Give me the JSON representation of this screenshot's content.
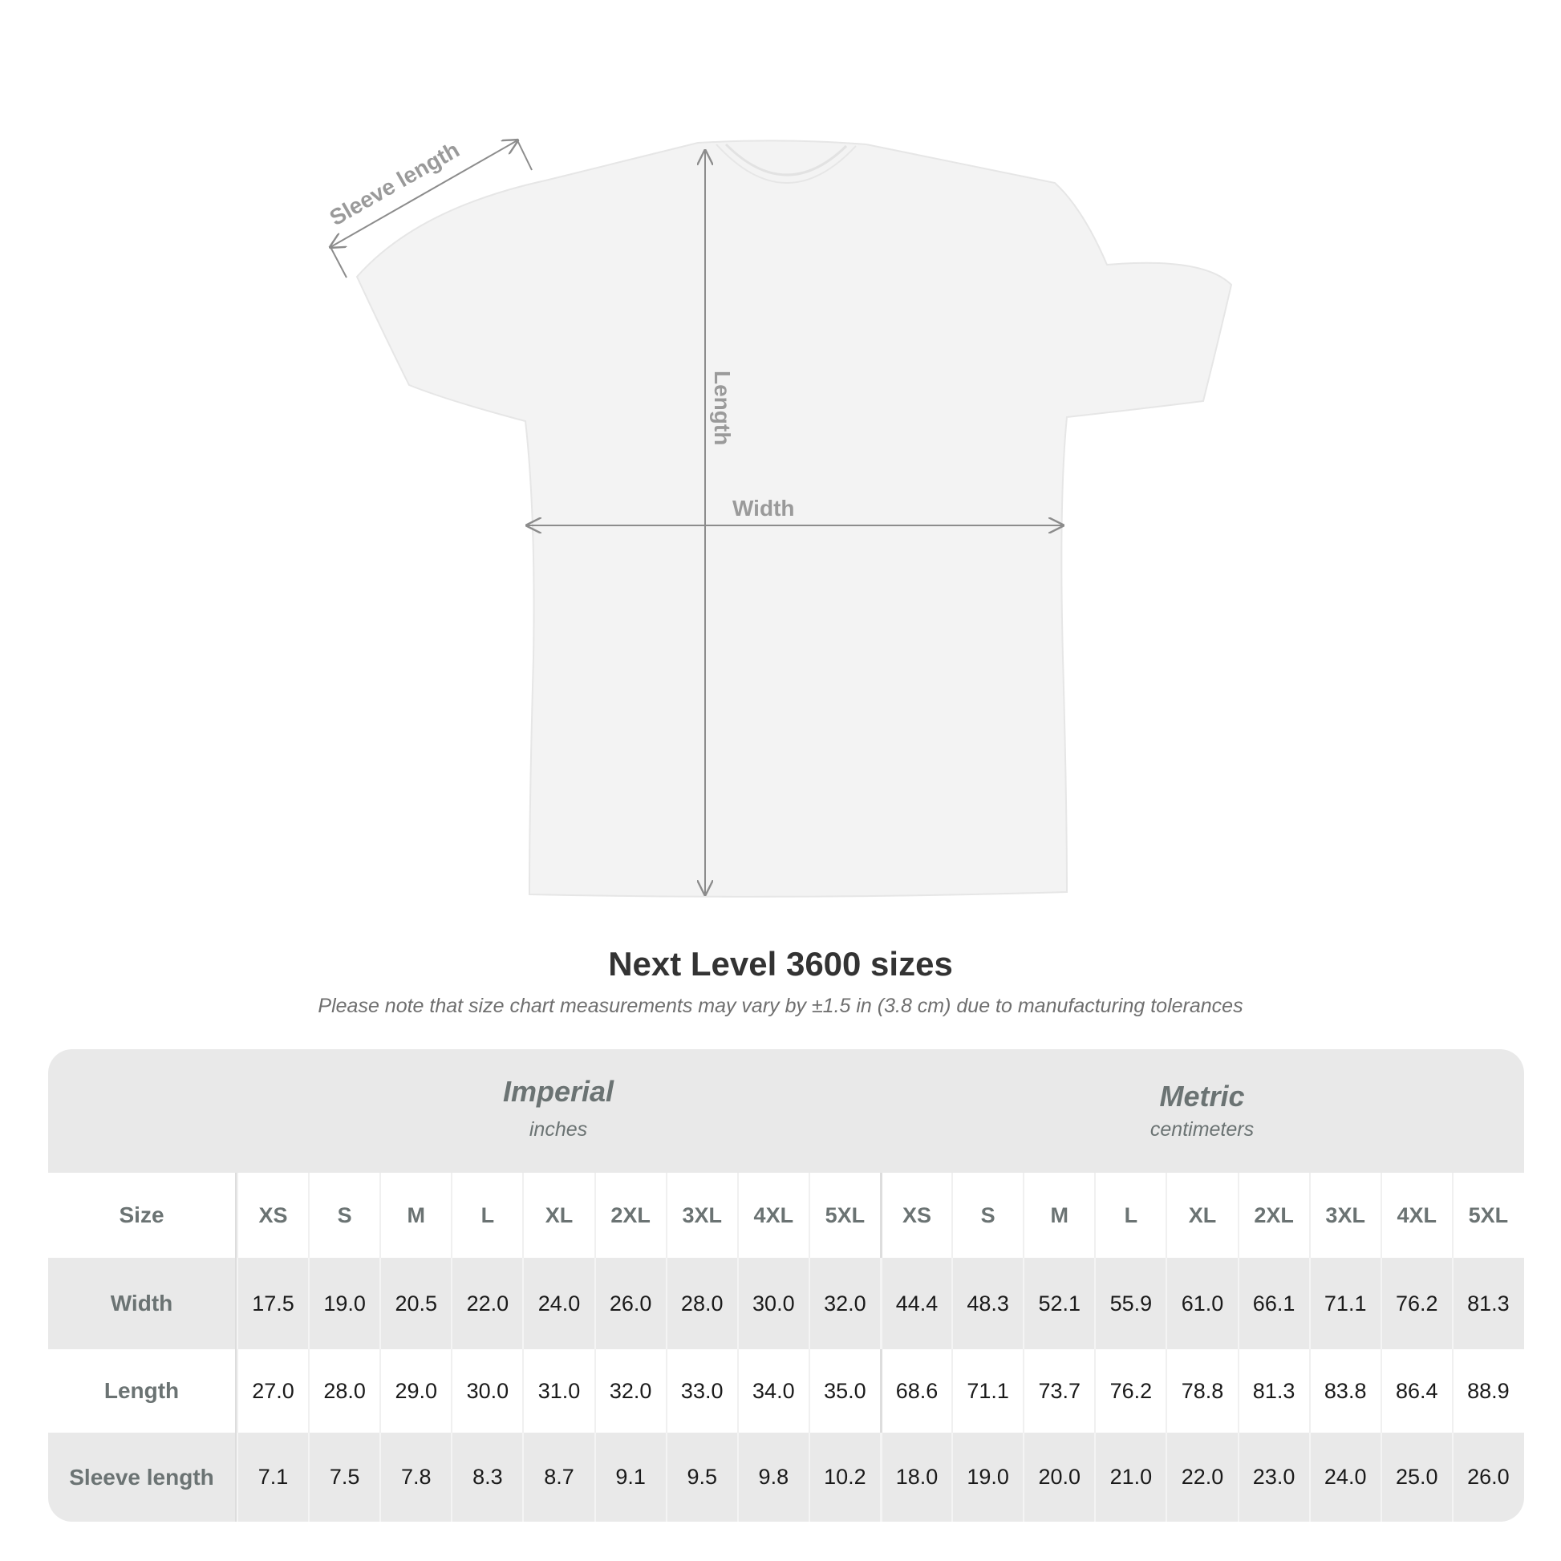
{
  "diagram": {
    "labels": {
      "sleeve": "Sleeve length",
      "length": "Length",
      "width": "Width"
    },
    "shirt_color": "#f3f3f3",
    "arrow_color": "#8c8c8c"
  },
  "title": "Next Level 3600 sizes",
  "subtitle": "Please note that size chart measurements may vary by ±1.5 in (3.8 cm) due to manufacturing tolerances",
  "table": {
    "imperial": {
      "heading": "Imperial",
      "unit": "inches"
    },
    "metric": {
      "heading": "Metric",
      "unit": "centimeters"
    },
    "size_label": "Size",
    "sizes": [
      "XS",
      "S",
      "M",
      "L",
      "XL",
      "2XL",
      "3XL",
      "4XL",
      "5XL"
    ],
    "rows": [
      {
        "label": "Width",
        "imperial": [
          "17.5",
          "19.0",
          "20.5",
          "22.0",
          "24.0",
          "26.0",
          "28.0",
          "30.0",
          "32.0"
        ],
        "metric": [
          "44.4",
          "48.3",
          "52.1",
          "55.9",
          "61.0",
          "66.1",
          "71.1",
          "76.2",
          "81.3"
        ]
      },
      {
        "label": "Length",
        "imperial": [
          "27.0",
          "28.0",
          "29.0",
          "30.0",
          "31.0",
          "32.0",
          "33.0",
          "34.0",
          "35.0"
        ],
        "metric": [
          "68.6",
          "71.1",
          "73.7",
          "76.2",
          "78.8",
          "81.3",
          "83.8",
          "86.4",
          "88.9"
        ]
      },
      {
        "label": "Sleeve length",
        "imperial": [
          "7.1",
          "7.5",
          "7.8",
          "8.3",
          "8.7",
          "9.1",
          "9.5",
          "9.8",
          "10.2"
        ],
        "metric": [
          "18.0",
          "19.0",
          "20.0",
          "21.0",
          "22.0",
          "23.0",
          "24.0",
          "25.0",
          "26.0"
        ]
      }
    ]
  }
}
